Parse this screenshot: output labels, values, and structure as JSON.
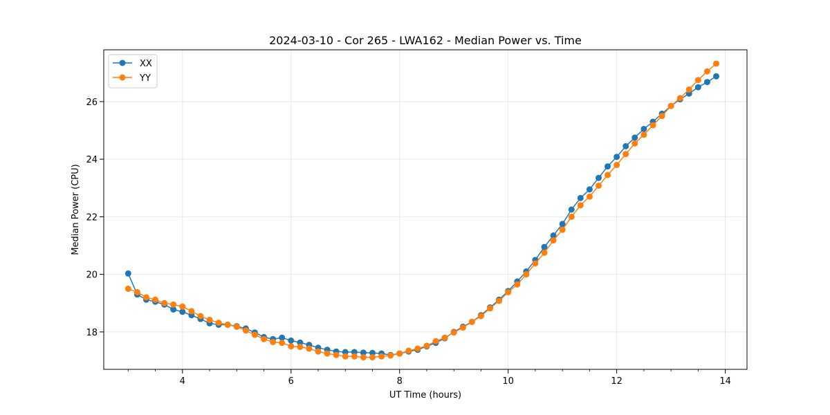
{
  "chart_data": {
    "type": "line",
    "title": "2024-03-10 - Cor 265 - LWA162 - Median Power vs. Time",
    "xlabel": "UT Time (hours)",
    "ylabel": "Median Power (CPU)",
    "xlim": [
      2.55,
      14.4
    ],
    "ylim": [
      16.7,
      27.8
    ],
    "x_ticks": [
      4,
      6,
      8,
      10,
      12,
      14
    ],
    "x_tick_labels": [
      "4",
      "6",
      "8",
      "10",
      "12",
      "14"
    ],
    "x_minor_ticks": [
      3.0,
      3.5,
      4.5,
      5.0,
      5.5,
      6.5,
      7.0,
      7.5,
      8.5,
      9.0,
      9.5,
      10.5,
      11.0,
      11.5,
      12.5,
      13.0,
      13.5
    ],
    "y_ticks": [
      18,
      20,
      22,
      24,
      26
    ],
    "y_tick_labels": [
      "18",
      "20",
      "22",
      "24",
      "26"
    ],
    "grid": true,
    "legend_position": "top-left",
    "x": [
      3.0,
      3.167,
      3.333,
      3.5,
      3.667,
      3.833,
      4.0,
      4.167,
      4.333,
      4.5,
      4.667,
      4.833,
      5.0,
      5.167,
      5.333,
      5.5,
      5.667,
      5.833,
      6.0,
      6.167,
      6.333,
      6.5,
      6.667,
      6.833,
      7.0,
      7.167,
      7.333,
      7.5,
      7.667,
      7.833,
      8.0,
      8.167,
      8.333,
      8.5,
      8.667,
      8.833,
      9.0,
      9.167,
      9.333,
      9.5,
      9.667,
      9.833,
      10.0,
      10.167,
      10.333,
      10.5,
      10.667,
      10.833,
      11.0,
      11.167,
      11.333,
      11.5,
      11.667,
      11.833,
      12.0,
      12.167,
      12.333,
      12.5,
      12.667,
      12.833,
      13.0,
      13.167,
      13.333,
      13.5,
      13.667,
      13.833
    ],
    "series": [
      {
        "name": "XX",
        "color": "#1f77b4",
        "values": [
          20.03,
          19.3,
          19.12,
          19.05,
          18.95,
          18.78,
          18.7,
          18.58,
          18.45,
          18.3,
          18.25,
          18.25,
          18.2,
          18.12,
          17.98,
          17.82,
          17.75,
          17.8,
          17.7,
          17.63,
          17.55,
          17.45,
          17.38,
          17.32,
          17.3,
          17.3,
          17.28,
          17.27,
          17.25,
          17.2,
          17.25,
          17.32,
          17.38,
          17.5,
          17.62,
          17.78,
          18.0,
          18.18,
          18.35,
          18.58,
          18.85,
          19.12,
          19.42,
          19.75,
          20.1,
          20.5,
          20.95,
          21.35,
          21.75,
          22.25,
          22.65,
          22.95,
          23.35,
          23.75,
          24.08,
          24.45,
          24.75,
          25.05,
          25.3,
          25.58,
          25.85,
          26.08,
          26.28,
          26.5,
          26.68,
          26.88
        ]
      },
      {
        "name": "YY",
        "color": "#ff7f0e",
        "values": [
          19.5,
          19.38,
          19.2,
          19.12,
          19.0,
          18.95,
          18.88,
          18.72,
          18.55,
          18.42,
          18.32,
          18.25,
          18.18,
          18.05,
          17.9,
          17.75,
          17.65,
          17.62,
          17.5,
          17.48,
          17.42,
          17.32,
          17.25,
          17.2,
          17.15,
          17.15,
          17.12,
          17.12,
          17.15,
          17.18,
          17.25,
          17.35,
          17.42,
          17.52,
          17.68,
          17.8,
          17.98,
          18.15,
          18.35,
          18.55,
          18.82,
          19.08,
          19.38,
          19.65,
          20.0,
          20.38,
          20.75,
          21.18,
          21.55,
          22.0,
          22.4,
          22.7,
          23.08,
          23.45,
          23.8,
          24.18,
          24.55,
          24.85,
          25.18,
          25.5,
          25.85,
          26.12,
          26.42,
          26.75,
          27.05,
          27.32
        ]
      }
    ]
  }
}
